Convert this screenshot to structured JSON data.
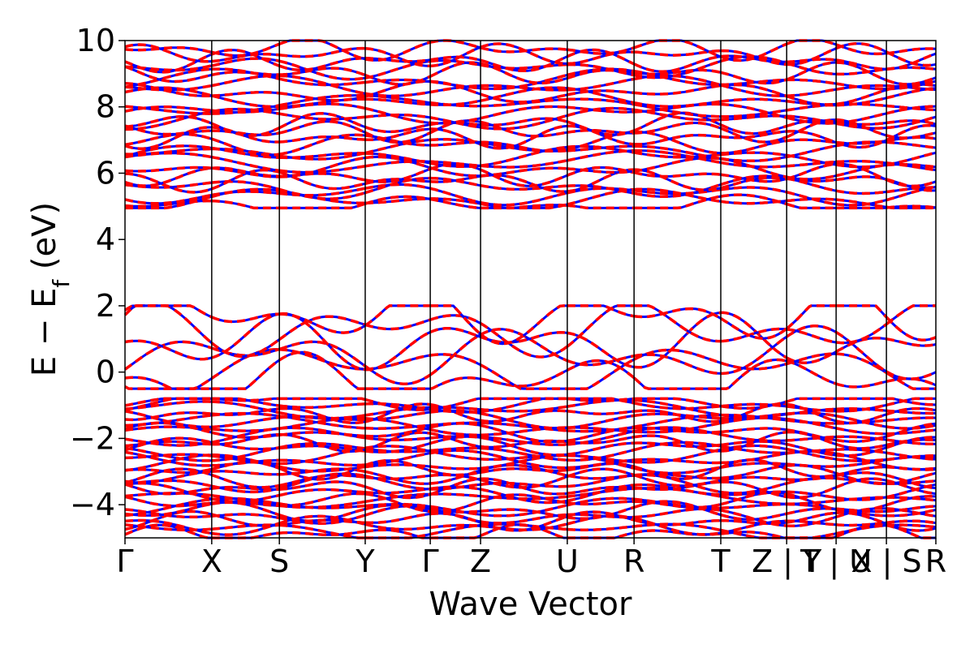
{
  "chart_data": {
    "type": "line",
    "title": "",
    "xlabel": "Wave Vector",
    "ylabel": "E − E",
    "ylabel_subscript": "f",
    "ylabel_unit": " (eV)",
    "ylim": [
      -5,
      10
    ],
    "yticks": [
      -4,
      -2,
      0,
      2,
      4,
      6,
      8,
      10
    ],
    "ytick_labels": [
      "−4",
      "−2",
      "0",
      "2",
      "4",
      "6",
      "8",
      "10"
    ],
    "kpath": [
      {
        "label": "Γ",
        "x": 0.0
      },
      {
        "label": "X",
        "x": 1.0
      },
      {
        "label": "S",
        "x": 1.78
      },
      {
        "label": "Y",
        "x": 2.77
      },
      {
        "label": "Γ",
        "x": 3.52
      },
      {
        "label": "Z",
        "x": 4.1
      },
      {
        "label": "U",
        "x": 5.1
      },
      {
        "label": "R",
        "x": 5.87
      },
      {
        "label": "T",
        "x": 6.87
      },
      {
        "label": "Z | Y",
        "x": 7.63
      },
      {
        "label": "T | U",
        "x": 8.2
      },
      {
        "label": "X | S",
        "x": 8.78
      },
      {
        "label": "R",
        "x": 9.35
      }
    ],
    "path_breaks": [
      7.63,
      8.2,
      8.78
    ],
    "xlim": [
      0,
      9.35
    ],
    "grid": false,
    "series": [
      {
        "style": "solid",
        "color": "#0000ff"
      },
      {
        "style": "dashed",
        "color": "#ff0000"
      }
    ],
    "band_gap": {
      "valence_max": 2.0,
      "conduction_min": 4.9
    },
    "note_bands": "band structure curves, valence manifold around -5 to -0.8 eV, near-Fermi bands -0.5 to 2 eV, conduction bands 4.9 to 10 eV"
  }
}
